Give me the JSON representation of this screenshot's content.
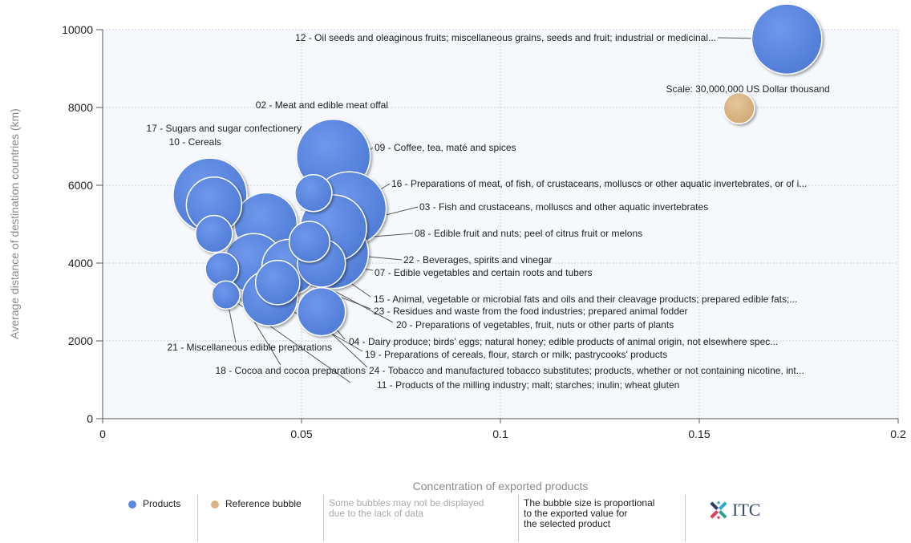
{
  "colors": {
    "products": "#5b86e0",
    "reference": "#d8b485",
    "plot_bg": "#f5f9fd",
    "grid": "#c9ced6"
  },
  "chart_data": {
    "type": "scatter",
    "xlabel": "Concentration of exported products",
    "ylabel": "Average distance of destination countries (km)",
    "xlim": [
      0,
      0.2
    ],
    "ylim": [
      0,
      10000
    ],
    "x_ticks": [
      "0",
      "0.05",
      "0.1",
      "0.15",
      "0.2"
    ],
    "y_ticks": [
      "0",
      "2000",
      "4000",
      "6000",
      "8000",
      "10000"
    ],
    "grid": "dotted",
    "series": [
      {
        "name": "Products",
        "points": [
          {
            "label": "12 - Oil seeds and oleaginous fruits; miscellaneous grains, seeds and fruit; industrial or medicinal...",
            "x": 0.172,
            "y": 9760,
            "size": 0.95
          },
          {
            "label": "02 - Meat and edible meat offal",
            "x": 0.058,
            "y": 6750,
            "size": 1.0
          },
          {
            "label": "17 - Sugars and sugar confectionery",
            "x": 0.027,
            "y": 5750,
            "size": 1.0
          },
          {
            "label": "10 - Cereals",
            "x": 0.028,
            "y": 5500,
            "size": 0.75
          },
          {
            "label": "09 - Coffee, tea, maté and spices",
            "x": 0.053,
            "y": 5800,
            "size": 0.5
          },
          {
            "label": "16 - Preparations of meat, of fish, of crustaceans, molluscs or other aquatic invertebrates, or of i...",
            "x": 0.062,
            "y": 5400,
            "size": 1.0
          },
          {
            "label": "03 - Fish and crustaceans, molluscs and other aquatic invertebrates",
            "x": 0.058,
            "y": 4900,
            "size": 0.9
          },
          {
            "label": "08 - Edible fruit and nuts; peel of citrus fruit or melons",
            "x": 0.052,
            "y": 4550,
            "size": 0.55
          },
          {
            "label": "22 - Beverages, spirits and vinegar",
            "x": 0.058,
            "y": 4250,
            "size": 0.95
          },
          {
            "label": "07 - Edible vegetables and certain roots and tubers",
            "x": 0.055,
            "y": 4000,
            "size": 0.65
          },
          {
            "label": "15 - Animal, vegetable or microbial fats and oils and their cleavage products; prepared edible fats;...",
            "x": 0.041,
            "y": 5000,
            "size": 0.85
          },
          {
            "label": "23 - Residues and waste from the food industries; prepared animal fodder",
            "x": 0.038,
            "y": 4000,
            "size": 0.8
          },
          {
            "label": "20 - Preparations of vegetables, fruit, nuts or other parts of plants",
            "x": 0.047,
            "y": 3900,
            "size": 0.75
          },
          {
            "label": "04 - Dairy produce; birds' eggs; natural honey; edible products of animal origin, not elsewhere spec...",
            "x": 0.055,
            "y": 2750,
            "size": 0.65
          },
          {
            "label": "19 - Preparations of cereals, flour, starch or milk; pastrycooks' products",
            "x": 0.042,
            "y": 3100,
            "size": 0.75
          },
          {
            "label": "21 - Miscellaneous edible preparations",
            "x": 0.028,
            "y": 4750,
            "size": 0.5
          },
          {
            "label": "18 - Cocoa and cocoa preparations",
            "x": 0.03,
            "y": 3850,
            "size": 0.45
          },
          {
            "label": "24 - Tobacco and manufactured tobacco substitutes; products, whether or not containing nicotine, int...",
            "x": 0.044,
            "y": 3500,
            "size": 0.6
          },
          {
            "label": "11 - Products of the milling industry; malt; starches; inulin; wheat gluten",
            "x": 0.031,
            "y": 3180,
            "size": 0.38
          }
        ]
      },
      {
        "name": "Reference bubble",
        "points": [
          {
            "label": "Scale: 30,000,000 US Dollar thousand",
            "x": 0.16,
            "y": 7980,
            "size": 0.42
          }
        ]
      }
    ]
  },
  "legend": {
    "products": "Products",
    "reference": "Reference bubble",
    "missing_note": [
      "Some bubbles may not be displayed",
      "due to the lack of data"
    ],
    "size_note": [
      "The bubble size is proportional",
      "to the exported value for",
      "the selected product"
    ],
    "logo_text": "ITC"
  }
}
